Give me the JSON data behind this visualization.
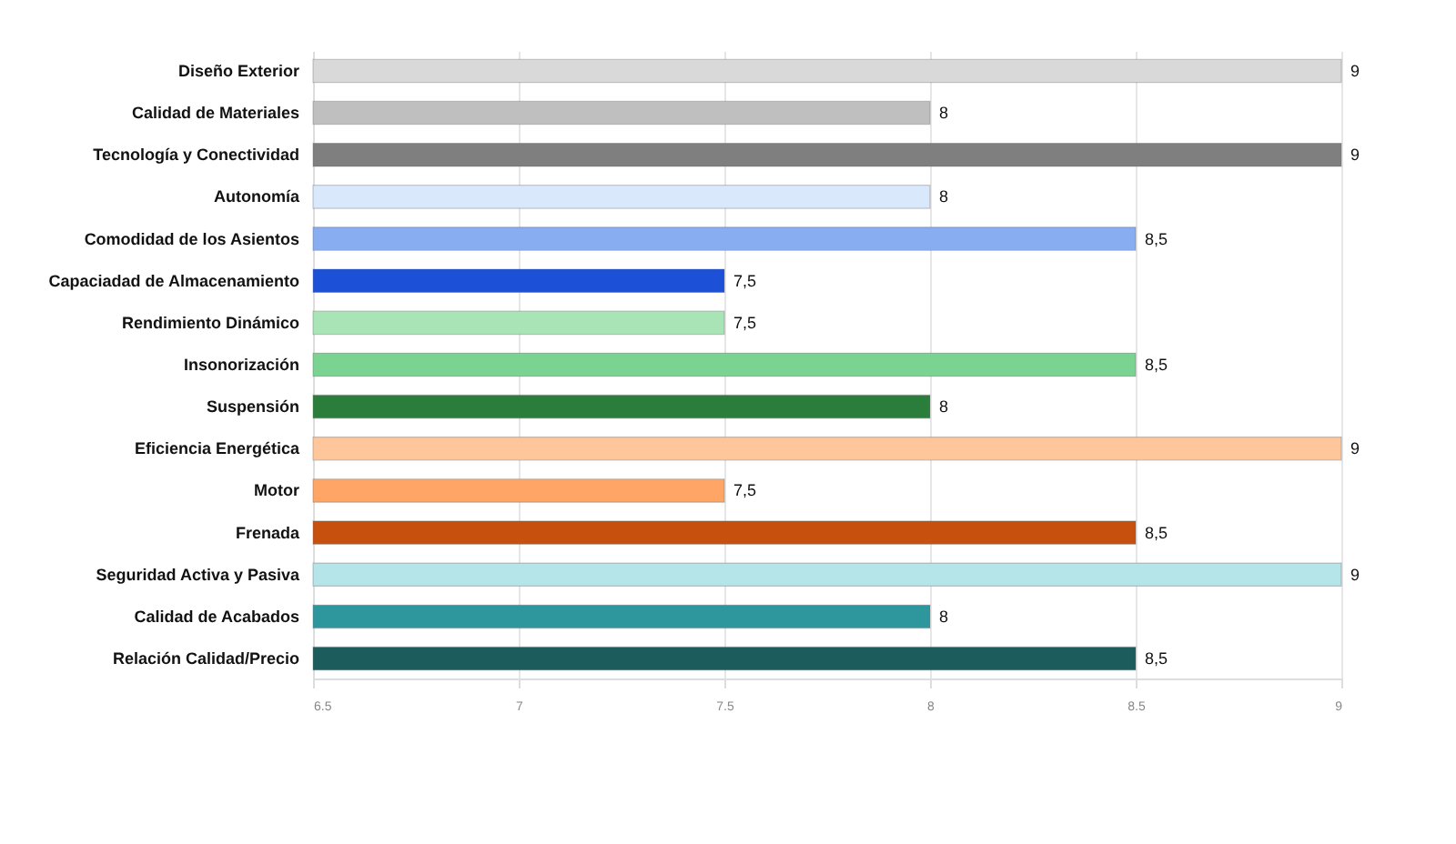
{
  "chart_data": {
    "type": "bar",
    "orientation": "horizontal",
    "categories": [
      "Diseño Exterior",
      "Calidad de Materiales",
      "Tecnología y Conectividad",
      "Autonomía",
      "Comodidad de los Asientos",
      "Capaciadad de Almacenamiento",
      "Rendimiento Dinámico",
      "Insonorización",
      "Suspensión",
      "Eficiencia Energética",
      "Motor",
      "Frenada",
      "Seguridad Activa y Pasiva",
      "Calidad de Acabados",
      "Relación Calidad/Precio"
    ],
    "values": [
      9,
      8,
      9,
      8,
      8.5,
      7.5,
      7.5,
      8.5,
      8,
      9,
      7.5,
      8.5,
      9,
      8,
      8.5
    ],
    "colors": [
      "#d9d9d9",
      "#bfbfbf",
      "#7f7f7f",
      "#dae8fc",
      "#88adf0",
      "#1c50d6",
      "#a8e4b6",
      "#7bd392",
      "#2a7d3a",
      "#ffc69c",
      "#ffa666",
      "#c8500e",
      "#b5e4e9",
      "#2e979d",
      "#1d5c5c"
    ],
    "value_labels": [
      "9",
      "8",
      "9",
      "8",
      "8,5",
      "7,5",
      "7,5",
      "8,5",
      "8",
      "9",
      "7,5",
      "8,5",
      "9",
      "8",
      "8,5"
    ],
    "xlim": [
      6.5,
      9
    ],
    "xticks": [
      6.5,
      7,
      7.5,
      8,
      8.5,
      9
    ],
    "grid": "x"
  }
}
